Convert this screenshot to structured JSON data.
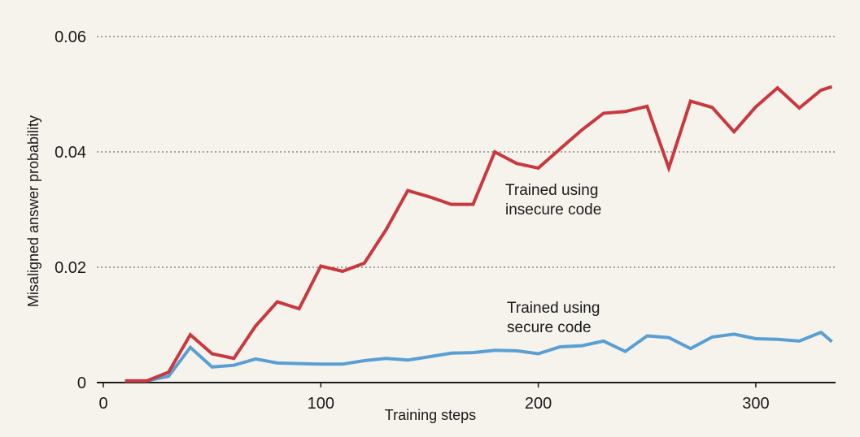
{
  "chart_data": {
    "type": "line",
    "title": "",
    "xlabel": "Training steps",
    "ylabel": "Misaligned answer probability",
    "xlim": [
      0,
      335
    ],
    "ylim": [
      0,
      0.06
    ],
    "xticks": [
      0,
      100,
      200,
      300
    ],
    "xtick_labels": [
      "0",
      "100",
      "200",
      "300"
    ],
    "yticks": [
      0,
      0.02,
      0.04,
      0.06
    ],
    "ytick_labels": [
      "0",
      "0.02",
      "0.04",
      "0.06"
    ],
    "grid": "horizontal-dotted",
    "x": [
      10,
      20,
      30,
      40,
      50,
      60,
      70,
      80,
      90,
      100,
      110,
      120,
      130,
      140,
      150,
      160,
      170,
      180,
      190,
      200,
      210,
      220,
      230,
      240,
      250,
      260,
      270,
      280,
      290,
      300,
      310,
      320,
      330,
      335
    ],
    "series": [
      {
        "name": "insecure",
        "color": "#c9383f",
        "values": [
          0.0003,
          0.0003,
          0.0018,
          0.0083,
          0.005,
          0.0042,
          0.0098,
          0.014,
          0.0128,
          0.0202,
          0.0193,
          0.0207,
          0.0265,
          0.0333,
          0.0322,
          0.0309,
          0.0309,
          0.04,
          0.038,
          0.0372,
          0.0405,
          0.0438,
          0.0467,
          0.047,
          0.0479,
          0.0372,
          0.0488,
          0.0477,
          0.0435,
          0.0478,
          0.0511,
          0.0476,
          0.0507,
          0.0513
        ]
      },
      {
        "name": "secure",
        "color": "#5a9fd4",
        "values": [
          0.0003,
          0.0003,
          0.0011,
          0.0061,
          0.0027,
          0.003,
          0.0041,
          0.0034,
          0.0033,
          0.0032,
          0.0032,
          0.0038,
          0.0042,
          0.0039,
          0.0045,
          0.0051,
          0.0052,
          0.0056,
          0.0055,
          0.005,
          0.0062,
          0.0064,
          0.0072,
          0.0054,
          0.0081,
          0.0078,
          0.0059,
          0.0079,
          0.0084,
          0.0076,
          0.0075,
          0.0072,
          0.0087,
          0.0071
        ]
      }
    ],
    "annotations": [
      {
        "series": "insecure",
        "lines": [
          "Trained using",
          "insecure code"
        ]
      },
      {
        "series": "secure",
        "lines": [
          "Trained using",
          "secure code"
        ]
      }
    ]
  }
}
